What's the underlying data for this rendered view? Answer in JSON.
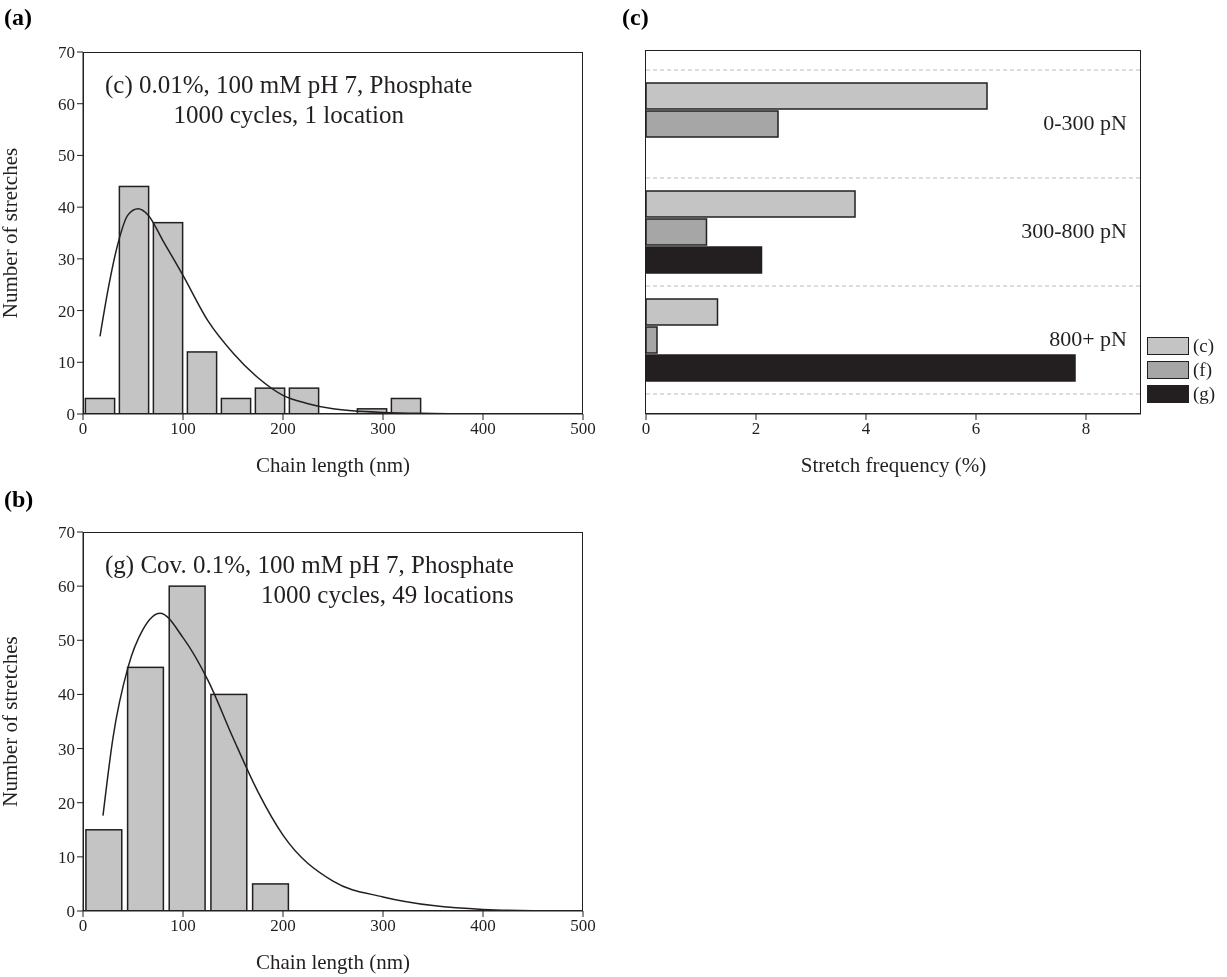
{
  "chart_data": [
    {
      "type": "histogram",
      "title": "(a)",
      "xlabel": "Chain length (nm)",
      "ylabel": "Number of stretches",
      "annotations": [
        "(c)   0.01%, 100 mM pH 7, Phosphate\n1000 cycles, 1 location"
      ],
      "xlim": [
        0,
        500
      ],
      "ylim": [
        0,
        70
      ],
      "xticks": [
        0,
        100,
        200,
        300,
        400,
        500
      ],
      "yticks": [
        0,
        10,
        20,
        30,
        40,
        50,
        60,
        70
      ],
      "legend": false,
      "grid": false,
      "series": [
        {
          "bins": [
            0,
            34,
            68,
            102,
            136,
            170,
            204,
            238,
            272,
            306,
            340
          ],
          "values": [
            3,
            44,
            37,
            12,
            3,
            5,
            5,
            0,
            1,
            3
          ],
          "color": "#c4c4c4"
        },
        {
          "type": "line",
          "color": "#231f20",
          "x": [
            17,
            25,
            35,
            45,
            55,
            65,
            80,
            100,
            125,
            150,
            175,
            200,
            225,
            250,
            300,
            350,
            400,
            500
          ],
          "values": [
            15,
            24,
            33,
            38.5,
            39.7,
            38.5,
            33.5,
            26.8,
            18,
            11.8,
            7,
            3.6,
            2,
            1,
            0.3,
            0.1,
            0,
            0
          ]
        }
      ]
    },
    {
      "type": "bar",
      "orientation": "horizontal",
      "title": "(c)",
      "xlabel": "Stretch frequency (%)",
      "categories": [
        "0-300 pN",
        "300-800 pN",
        "800+ pN"
      ],
      "xlim": [
        0,
        9
      ],
      "xticks": [
        0,
        2,
        4,
        6,
        8
      ],
      "grid": "y",
      "legend": "bottom right",
      "series": [
        {
          "name": "(c)",
          "color": "#c4c4c4",
          "values": [
            6.2,
            3.8,
            1.3
          ]
        },
        {
          "name": "(f)",
          "color": "#a6a6a6",
          "values": [
            2.4,
            1.1,
            0.2
          ]
        },
        {
          "name": "(g)",
          "color": "#231f20",
          "values": [
            null,
            2.1,
            7.8
          ]
        }
      ]
    },
    {
      "type": "histogram",
      "title": "(b)",
      "xlabel": "Chain length (nm)",
      "ylabel": "Number of stretches",
      "annotations": [
        "(g)   Cov. 0.1%, 100 mM pH 7, Phosphate\n1000 cycles, 49 locations"
      ],
      "xlim": [
        0,
        500
      ],
      "ylim": [
        0,
        70
      ],
      "xticks": [
        0,
        100,
        200,
        300,
        400,
        500
      ],
      "yticks": [
        0,
        10,
        20,
        30,
        40,
        50,
        60,
        70
      ],
      "legend": false,
      "grid": false,
      "series": [
        {
          "bins": [
            0,
            41.7,
            83.3,
            125,
            166.7,
            208.3
          ],
          "values": [
            15,
            45,
            60,
            40,
            5
          ],
          "color": "#c4c4c4"
        },
        {
          "type": "line",
          "color": "#231f20",
          "x": [
            20,
            30,
            45,
            60,
            77,
            100,
            125,
            150,
            175,
            200,
            250,
            300,
            350,
            400,
            480
          ],
          "values": [
            17.6,
            32,
            45,
            52,
            55,
            50.5,
            42.6,
            32,
            22,
            14,
            5.5,
            2.6,
            1,
            0.3,
            0
          ]
        }
      ]
    }
  ]
}
